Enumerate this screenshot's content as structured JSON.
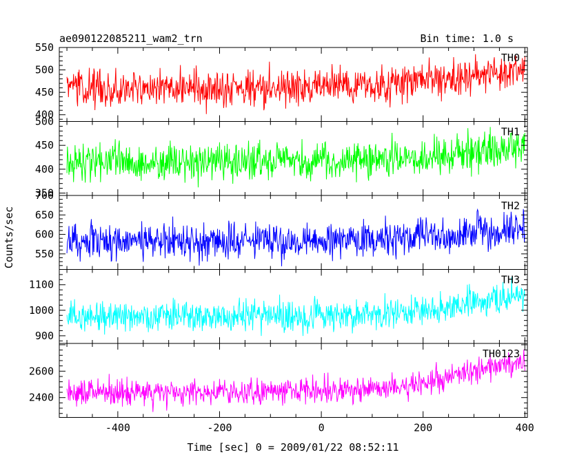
{
  "header": {
    "title": "ae090122085211_wam2_trn",
    "bin_time": "Bin time: 1.0 s"
  },
  "chart_data": {
    "type": "line",
    "xlabel": "Time [sec] 0 = 2009/01/22 08:52:11",
    "ylabel": "Counts/sec",
    "xlim": [
      -515,
      405
    ],
    "x_range": [
      -500,
      400
    ],
    "bin_time": 1.0,
    "x_ticks": [
      -400,
      -200,
      0,
      200,
      400
    ],
    "panels": [
      {
        "name": "TH0",
        "color": "#ff0000",
        "ylim": [
          385,
          550
        ],
        "y_ticks": [
          400,
          450,
          500,
          550
        ],
        "trend": [
          [
            -500,
            460
          ],
          [
            -100,
            460
          ],
          [
            150,
            468
          ],
          [
            400,
            500
          ]
        ],
        "noise": 20
      },
      {
        "name": "TH1",
        "color": "#00ff00",
        "ylim": [
          345,
          500
        ],
        "y_ticks": [
          350,
          400,
          450,
          500
        ],
        "trend": [
          [
            -500,
            415
          ],
          [
            -100,
            417
          ],
          [
            150,
            420
          ],
          [
            400,
            450
          ]
        ],
        "noise": 20
      },
      {
        "name": "TH2",
        "color": "#0000ff",
        "ylim": [
          510,
          700
        ],
        "y_ticks": [
          550,
          600,
          650,
          700
        ],
        "trend": [
          [
            -500,
            580
          ],
          [
            -100,
            582
          ],
          [
            150,
            588
          ],
          [
            400,
            620
          ]
        ],
        "noise": 24
      },
      {
        "name": "TH3",
        "color": "#00ffff",
        "ylim": [
          870,
          1160
        ],
        "y_ticks": [
          900,
          1000,
          1100
        ],
        "trend": [
          [
            -500,
            975
          ],
          [
            -100,
            978
          ],
          [
            150,
            985
          ],
          [
            400,
            1060
          ]
        ],
        "noise": 31
      },
      {
        "name": "TH0123",
        "color": "#ff00ff",
        "ylim": [
          2250,
          2810
        ],
        "y_ticks": [
          2400,
          2600
        ],
        "trend": [
          [
            -500,
            2435
          ],
          [
            -100,
            2440
          ],
          [
            150,
            2470
          ],
          [
            400,
            2680
          ]
        ],
        "noise": 48
      }
    ]
  }
}
